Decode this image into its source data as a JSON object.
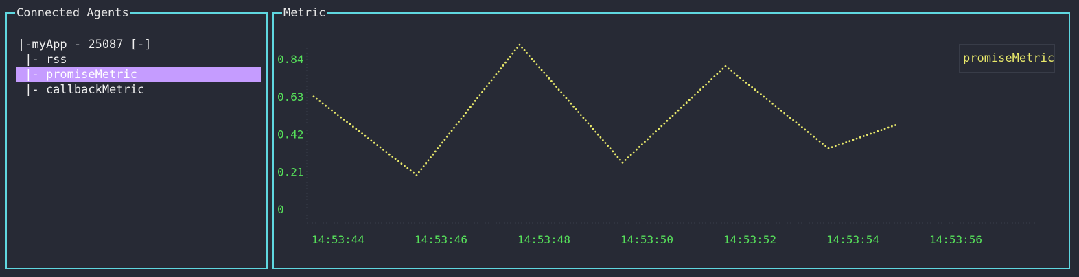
{
  "agents_panel": {
    "title": "Connected Agents",
    "items": [
      {
        "label": "|-myApp - 25087 [-]",
        "selected": false
      },
      {
        "label": " |- rss",
        "selected": false
      },
      {
        "label": " |- promiseMetric",
        "selected": true
      },
      {
        "label": " |- callbackMetric",
        "selected": false
      }
    ]
  },
  "metric_panel": {
    "title": "Metric",
    "legend_label": "promiseMetric"
  },
  "colors": {
    "border": "#5fd7e0",
    "selection": "#c59cff",
    "axis_label": "#56e05a",
    "series": "#e8e86a"
  },
  "chart_data": {
    "type": "line",
    "y_ticks": [
      "0.84",
      "0.63",
      "0.42",
      "0.21",
      "0"
    ],
    "x_ticks": [
      "14:53:44",
      "14:53:46",
      "14:53:48",
      "14:53:50",
      "14:53:52",
      "14:53:54",
      "14:53:56"
    ],
    "ylim": [
      0,
      0.84
    ],
    "series": [
      {
        "name": "promiseMetric",
        "x": [
          "14:53:44",
          "14:53:46",
          "14:53:48",
          "14:53:50",
          "14:53:52",
          "14:53:54",
          "14:53:55.3"
        ],
        "values": [
          0.63,
          0.19,
          0.92,
          0.26,
          0.8,
          0.34,
          0.47
        ]
      }
    ]
  }
}
